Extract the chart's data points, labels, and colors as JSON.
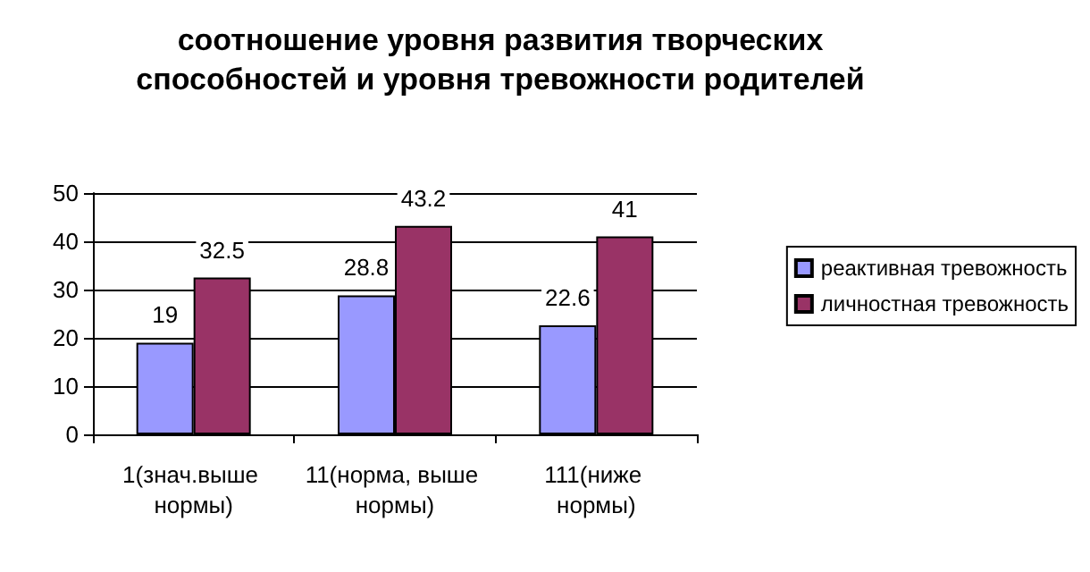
{
  "chart_data": {
    "type": "bar",
    "title": "соотношение уровня развития творческих способностей и уровня тревожности родителей",
    "categories": [
      "1(знач.выше нормы)",
      "11(норма, выше нормы)",
      "111(ниже нормы)"
    ],
    "series": [
      {
        "name": "реактивная тревожность",
        "color": "#9999ff",
        "values": [
          19,
          28.8,
          22.6
        ]
      },
      {
        "name": "личностная тревожность",
        "color": "#993366",
        "values": [
          32.5,
          43.2,
          41
        ]
      }
    ],
    "ylim": [
      0,
      50
    ],
    "yticks": [
      0,
      10,
      20,
      30,
      40,
      50
    ],
    "grid": "y",
    "legend": "right",
    "data_labels": true
  }
}
